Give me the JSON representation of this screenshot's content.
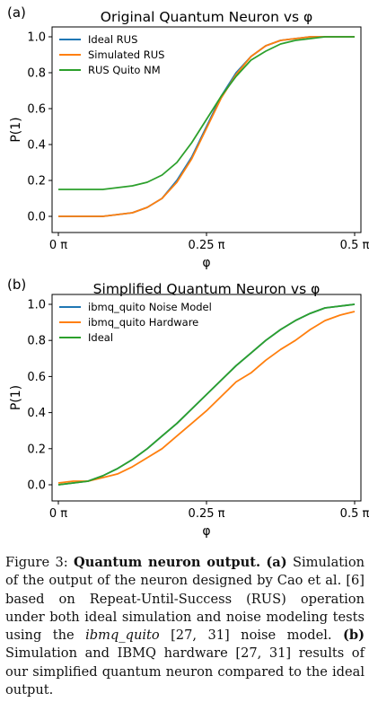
{
  "chart_data": [
    {
      "type": "line",
      "panel_label": "(a)",
      "title": "Original Quantum Neuron vs φ",
      "xlabel": "φ",
      "ylabel": "P(1)",
      "x_ticks": [
        "0 π",
        "0.25 π",
        "0.5 π"
      ],
      "y_ticks": [
        "0.0",
        "0.2",
        "0.4",
        "0.6",
        "0.8",
        "1.0"
      ],
      "xlim": [
        0,
        0.5
      ],
      "ylim": [
        0,
        1.0
      ],
      "x_unit": "π",
      "legend_position": "top-left",
      "x": [
        0.0,
        0.025,
        0.05,
        0.075,
        0.1,
        0.125,
        0.15,
        0.175,
        0.2,
        0.225,
        0.25,
        0.275,
        0.3,
        0.325,
        0.35,
        0.375,
        0.4,
        0.425,
        0.45,
        0.475,
        0.5
      ],
      "series": [
        {
          "name": "Ideal RUS",
          "color": "#1f77b4",
          "values": [
            0.0,
            0.0,
            0.0,
            0.0,
            0.01,
            0.02,
            0.05,
            0.1,
            0.2,
            0.33,
            0.5,
            0.67,
            0.8,
            0.89,
            0.95,
            0.98,
            0.99,
            1.0,
            1.0,
            1.0,
            1.0
          ]
        },
        {
          "name": "Simulated RUS",
          "color": "#ff7f0e",
          "values": [
            0.0,
            0.0,
            0.0,
            0.0,
            0.01,
            0.02,
            0.05,
            0.1,
            0.19,
            0.32,
            0.49,
            0.66,
            0.79,
            0.89,
            0.95,
            0.98,
            0.99,
            1.0,
            1.0,
            1.0,
            1.0
          ]
        },
        {
          "name": "RUS Quito NM",
          "color": "#2ca02c",
          "values": [
            0.15,
            0.15,
            0.15,
            0.15,
            0.16,
            0.17,
            0.19,
            0.23,
            0.3,
            0.41,
            0.54,
            0.67,
            0.78,
            0.87,
            0.92,
            0.96,
            0.98,
            0.99,
            1.0,
            1.0,
            1.0
          ]
        }
      ]
    },
    {
      "type": "line",
      "panel_label": "(b)",
      "title": "Simplified Quantum Neuron vs φ",
      "xlabel": "φ",
      "ylabel": "P(1)",
      "x_ticks": [
        "0 π",
        "0.25 π",
        "0.5 π"
      ],
      "y_ticks": [
        "0.0",
        "0.2",
        "0.4",
        "0.6",
        "0.8",
        "1.0"
      ],
      "xlim": [
        0,
        0.5
      ],
      "ylim": [
        0,
        1.0
      ],
      "x_unit": "π",
      "legend_position": "top-left",
      "x": [
        0.0,
        0.025,
        0.05,
        0.075,
        0.1,
        0.125,
        0.15,
        0.175,
        0.2,
        0.225,
        0.25,
        0.275,
        0.3,
        0.325,
        0.35,
        0.375,
        0.4,
        0.425,
        0.45,
        0.475,
        0.5
      ],
      "series": [
        {
          "name": "ibmq_quito Noise Model",
          "color": "#1f77b4",
          "values": [
            0.0,
            0.01,
            0.02,
            0.05,
            0.09,
            0.14,
            0.2,
            0.27,
            0.34,
            0.42,
            0.5,
            0.58,
            0.66,
            0.73,
            0.8,
            0.86,
            0.91,
            0.95,
            0.98,
            0.99,
            1.0
          ]
        },
        {
          "name": "ibmq_quito Hardware",
          "color": "#ff7f0e",
          "values": [
            0.01,
            0.02,
            0.02,
            0.04,
            0.06,
            0.1,
            0.15,
            0.2,
            0.27,
            0.34,
            0.41,
            0.49,
            0.57,
            0.62,
            0.69,
            0.75,
            0.8,
            0.86,
            0.91,
            0.94,
            0.96
          ]
        },
        {
          "name": "Ideal",
          "color": "#2ca02c",
          "values": [
            0.0,
            0.01,
            0.02,
            0.05,
            0.09,
            0.14,
            0.2,
            0.27,
            0.34,
            0.42,
            0.5,
            0.58,
            0.66,
            0.73,
            0.8,
            0.86,
            0.91,
            0.95,
            0.98,
            0.99,
            1.0
          ]
        }
      ]
    }
  ],
  "caption": {
    "figure_label": "Figure 3:",
    "bold_title": "Quantum neuron output.",
    "part_a_label": "(a)",
    "text_1": "Simulation of the output of the neuron designed by Cao et al. [6] based on Repeat-Until-Success (RUS) operation under both ideal simulation and noise modeling tests using the",
    "italic_model": "ibmq_quito",
    "text_2": "[27, 31] noise model.",
    "part_b_label": "(b)",
    "text_3": "Simulation and IBMQ hardware [27, 31] results of our simplified quantum neuron compared to the ideal output."
  }
}
